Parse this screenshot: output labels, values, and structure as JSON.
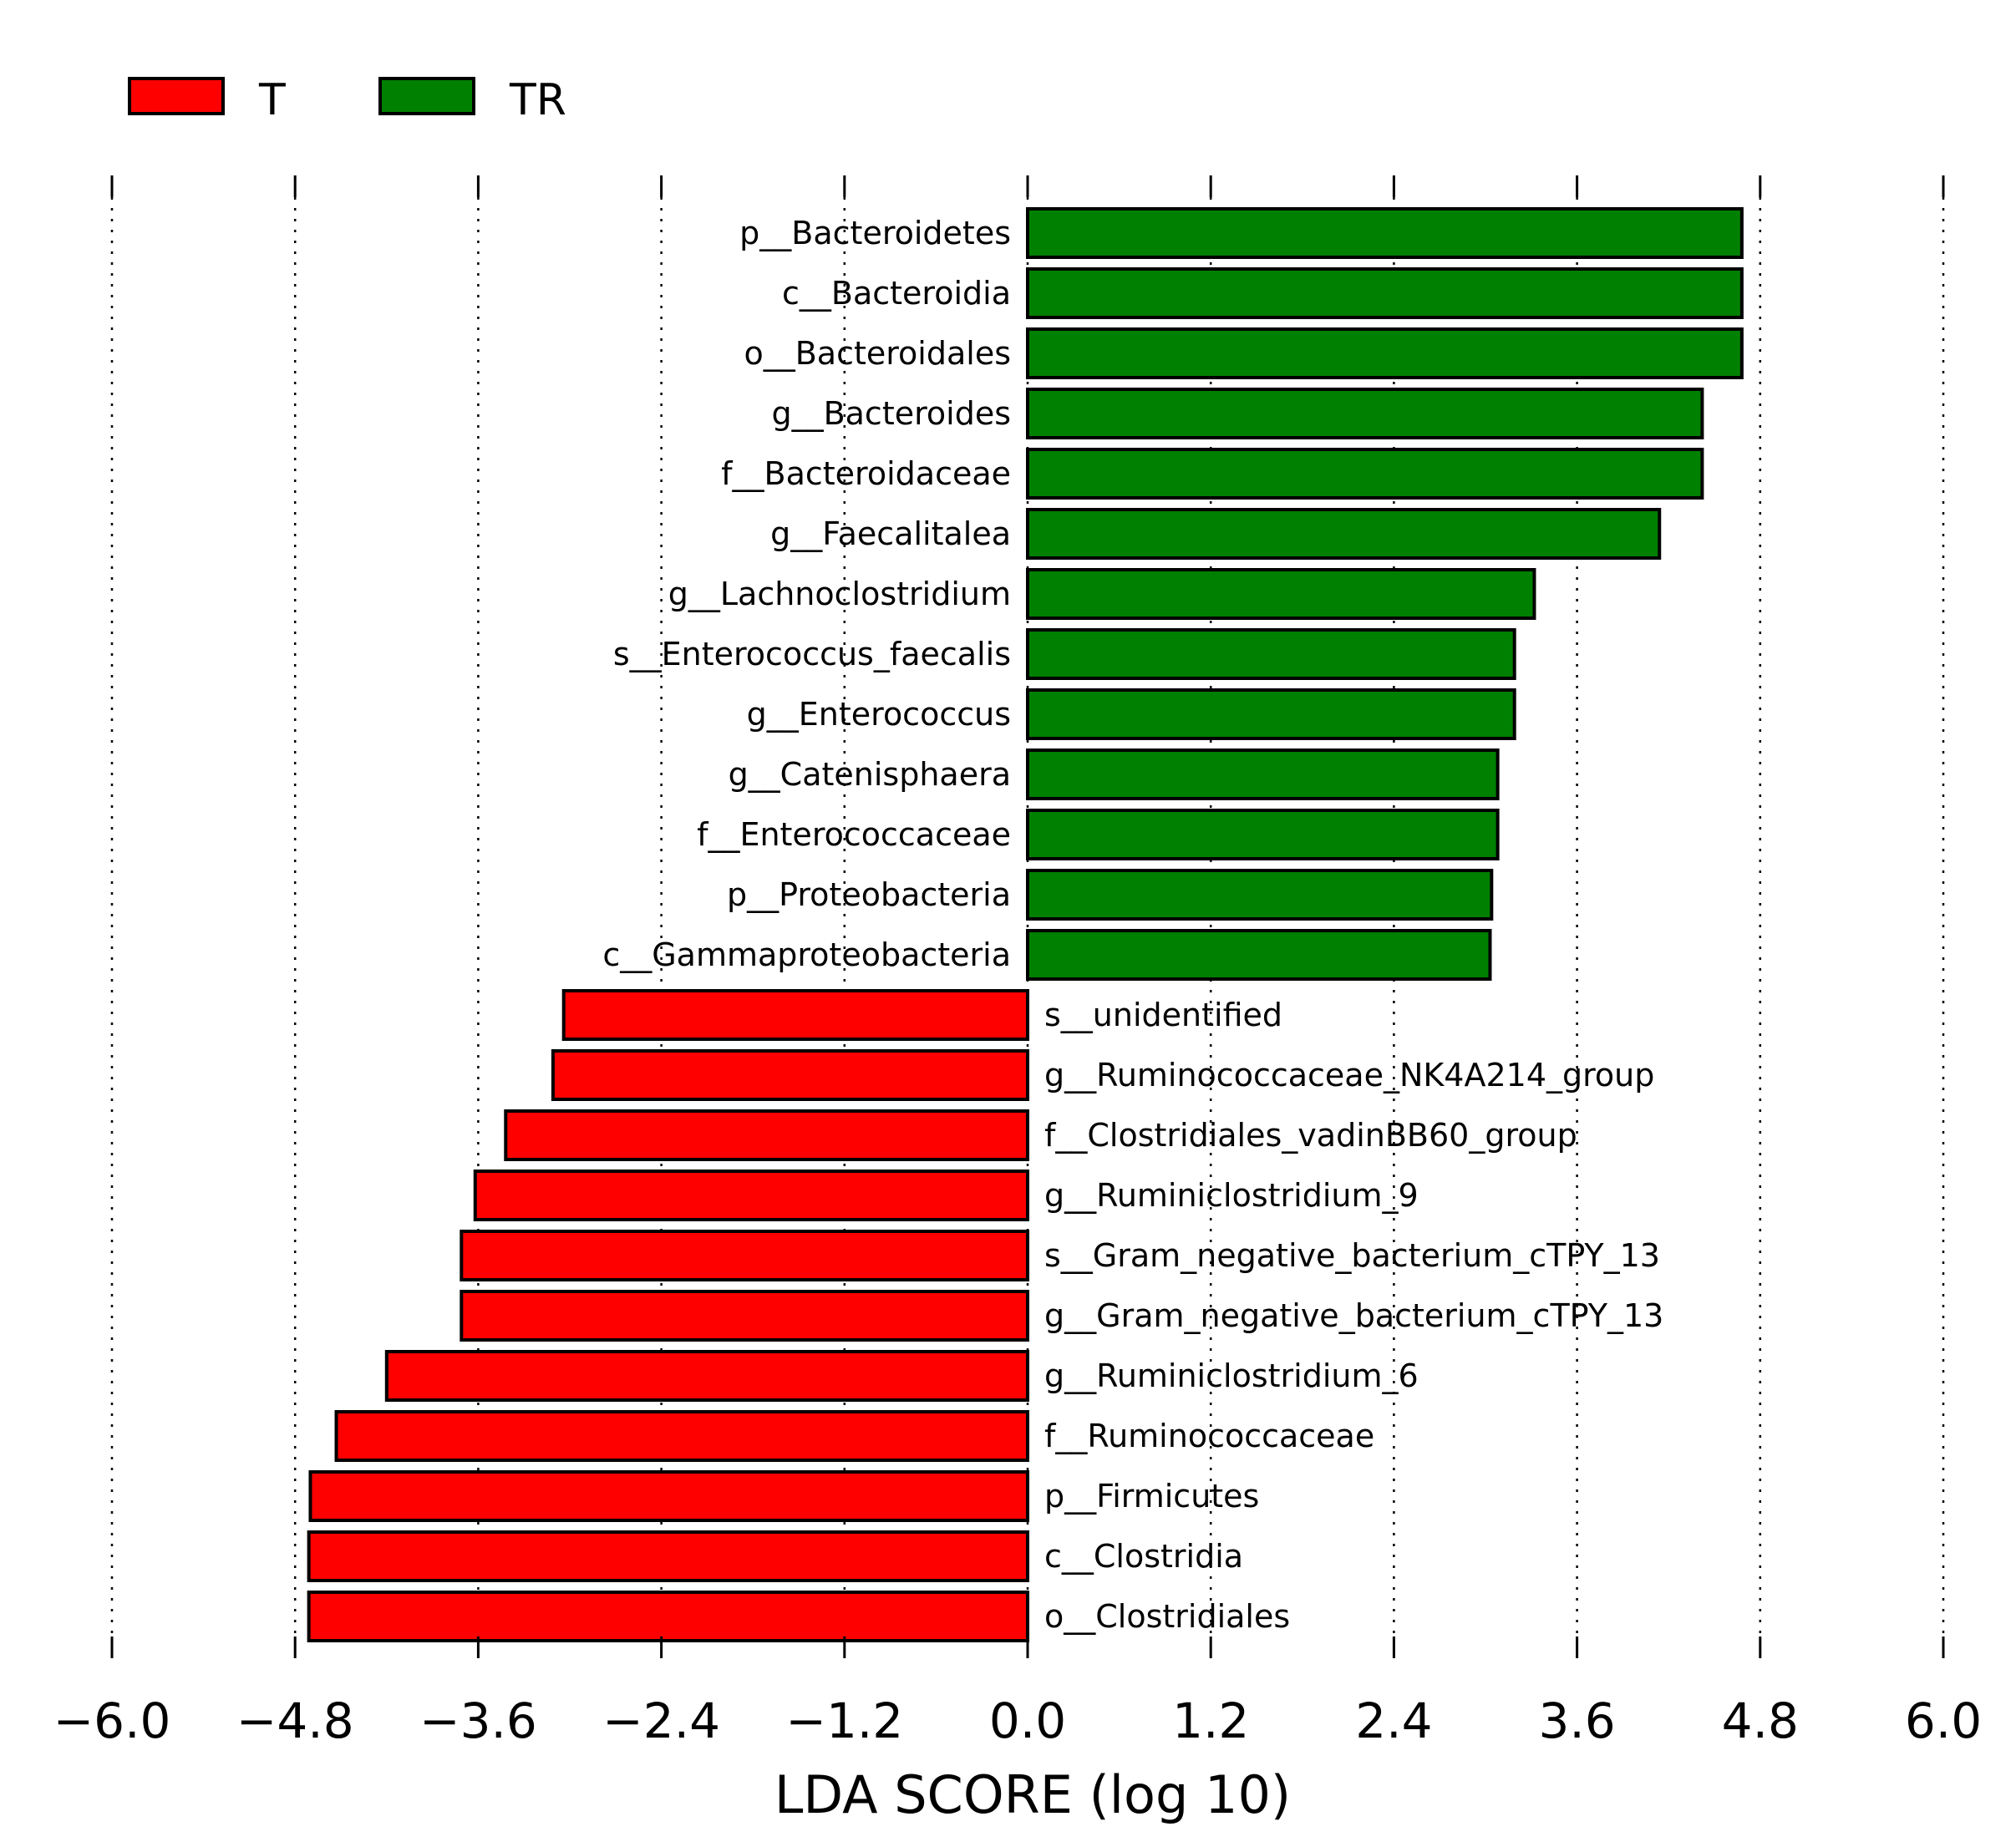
{
  "chart_data": {
    "type": "bar",
    "orientation": "horizontal",
    "xlabel": "LDA SCORE (log 10)",
    "xlim": [
      -6.0,
      6.0
    ],
    "xticks": [
      -6.0,
      -4.8,
      -3.6,
      -2.4,
      -1.2,
      0.0,
      1.2,
      2.4,
      3.6,
      4.8,
      6.0
    ],
    "xtick_labels": [
      "−6.0",
      "−4.8",
      "−3.6",
      "−2.4",
      "−1.2",
      "0.0",
      "1.2",
      "2.4",
      "3.6",
      "4.8",
      "6.0"
    ],
    "grid": "vertical dotted",
    "legend": {
      "placement": "top-left",
      "entries": [
        {
          "label": "T",
          "color": "#ff0000"
        },
        {
          "label": "TR",
          "color": "#008000"
        }
      ]
    },
    "groups": {
      "T": {
        "color": "#ff0000"
      },
      "TR": {
        "color": "#008000"
      }
    },
    "bars": [
      {
        "label": "p__Bacteroidetes",
        "value": 4.68,
        "group": "TR"
      },
      {
        "label": "c__Bacteroidia",
        "value": 4.68,
        "group": "TR"
      },
      {
        "label": "o__Bacteroidales",
        "value": 4.68,
        "group": "TR"
      },
      {
        "label": "g__Bacteroides",
        "value": 4.42,
        "group": "TR"
      },
      {
        "label": "f__Bacteroidaceae",
        "value": 4.42,
        "group": "TR"
      },
      {
        "label": "g__Faecalitalea",
        "value": 4.14,
        "group": "TR"
      },
      {
        "label": "g__Lachnoclostridium",
        "value": 3.32,
        "group": "TR"
      },
      {
        "label": "s__Enterococcus_faecalis",
        "value": 3.19,
        "group": "TR"
      },
      {
        "label": "g__Enterococcus",
        "value": 3.19,
        "group": "TR"
      },
      {
        "label": "g__Catenisphaera",
        "value": 3.08,
        "group": "TR"
      },
      {
        "label": "f__Enterococcaceae",
        "value": 3.08,
        "group": "TR"
      },
      {
        "label": "p__Proteobacteria",
        "value": 3.04,
        "group": "TR"
      },
      {
        "label": "c__Gammaproteobacteria",
        "value": 3.03,
        "group": "TR"
      },
      {
        "label": "s__unidentified",
        "value": -3.04,
        "group": "T"
      },
      {
        "label": "g__Ruminococcaceae_NK4A214_group",
        "value": -3.11,
        "group": "T"
      },
      {
        "label": "f__Clostridiales_vadinBB60_group",
        "value": -3.42,
        "group": "T"
      },
      {
        "label": "g__Ruminiclostridium_9",
        "value": -3.62,
        "group": "T"
      },
      {
        "label": "s__Gram_negative_bacterium_cTPY_13",
        "value": -3.71,
        "group": "T"
      },
      {
        "label": "g__Gram_negative_bacterium_cTPY_13",
        "value": -3.71,
        "group": "T"
      },
      {
        "label": "g__Ruminiclostridium_6",
        "value": -4.2,
        "group": "T"
      },
      {
        "label": "f__Ruminococcaceae",
        "value": -4.53,
        "group": "T"
      },
      {
        "label": "p__Firmicutes",
        "value": -4.7,
        "group": "T"
      },
      {
        "label": "c__Clostridia",
        "value": -4.71,
        "group": "T"
      },
      {
        "label": "o__Clostridiales",
        "value": -4.71,
        "group": "T"
      }
    ]
  }
}
